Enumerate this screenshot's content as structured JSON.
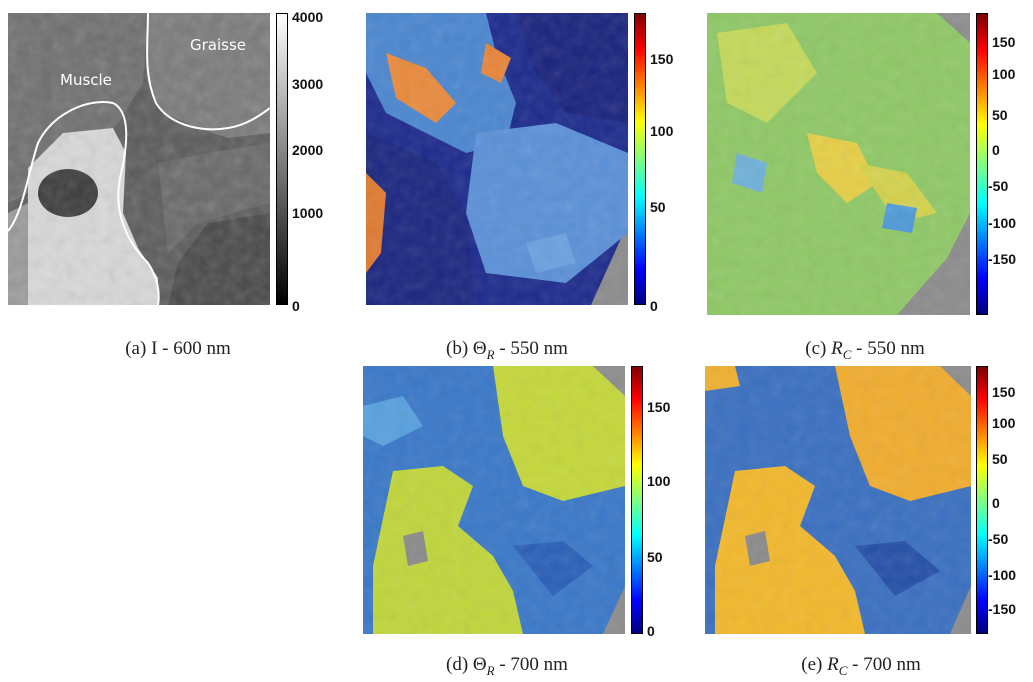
{
  "panels": {
    "a": {
      "caption_prefix": "(a)",
      "caption_var": "I",
      "caption_sub": "",
      "caption_suffix": " - 600 nm",
      "labels": {
        "muscle": "Muscle",
        "graisse": "Graisse"
      },
      "colorbar": {
        "colormap": "gray",
        "ticks": [
          "4000",
          "3000",
          "2000",
          "1000",
          "0"
        ]
      }
    },
    "b": {
      "caption_prefix": "(b)",
      "caption_var": "Θ",
      "caption_sub": "R",
      "caption_suffix": " - 550 nm",
      "colorbar": {
        "colormap": "jet",
        "ticks": [
          "150",
          "100",
          "50",
          "0"
        ]
      }
    },
    "c": {
      "caption_prefix": "(c)",
      "caption_var": "R",
      "caption_sub": "C",
      "caption_suffix": " - 550 nm",
      "colorbar": {
        "colormap": "jet",
        "ticks": [
          "150",
          "100",
          "50",
          "0",
          "-50",
          "-100",
          "-150"
        ]
      }
    },
    "d": {
      "caption_prefix": "(d)",
      "caption_var": "Θ",
      "caption_sub": "R",
      "caption_suffix": " - 700 nm",
      "colorbar": {
        "colormap": "jet",
        "ticks": [
          "150",
          "100",
          "50",
          "0"
        ]
      }
    },
    "e": {
      "caption_prefix": "(e)",
      "caption_var": "R",
      "caption_sub": "C",
      "caption_suffix": " - 700 nm",
      "colorbar": {
        "colormap": "jet",
        "ticks": [
          "150",
          "100",
          "50",
          "0",
          "-50",
          "-100",
          "-150"
        ]
      }
    }
  },
  "colors": {
    "background_gray": "#8c8c8c",
    "boundary": "#ffffff"
  }
}
